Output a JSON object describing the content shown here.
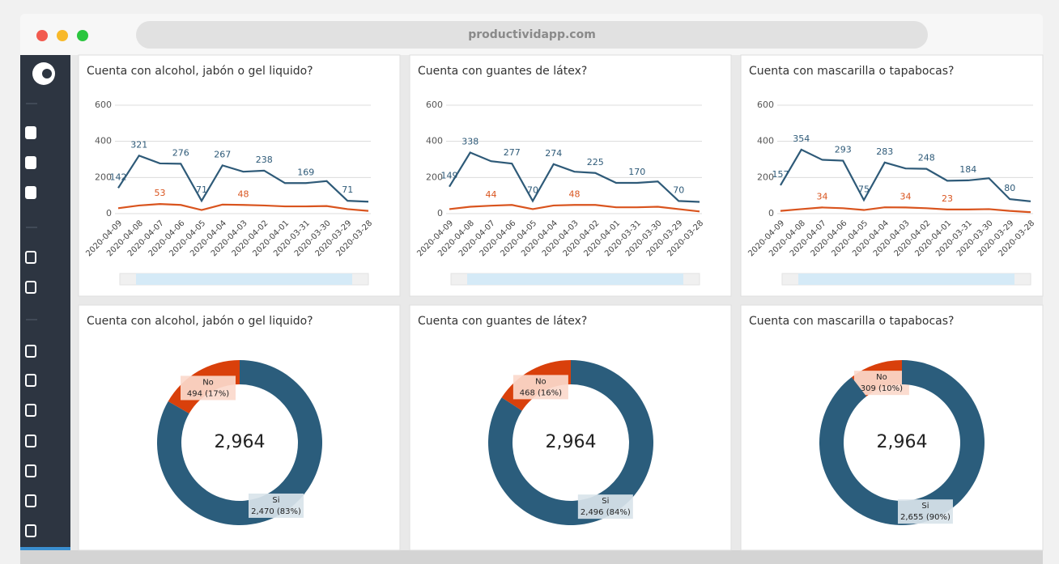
{
  "browser": {
    "url": "productividapp.com"
  },
  "chart_data": [
    {
      "type": "line",
      "title": "Cuenta con alcohol, jabón o gel liquido?",
      "categories": [
        "2020-04-09",
        "2020-04-08",
        "2020-04-07",
        "2020-04-06",
        "2020-04-05",
        "2020-04-04",
        "2020-04-03",
        "2020-04-02",
        "2020-04-01",
        "2020-03-31",
        "2020-03-30",
        "2020-03-29",
        "2020-03-28"
      ],
      "series": [
        {
          "color": "#2e5a78",
          "values": [
            142,
            321,
            278,
            276,
            71,
            267,
            232,
            238,
            169,
            169,
            180,
            71,
            66
          ],
          "value_labels": [
            "142",
            "321",
            null,
            "276",
            "71",
            "267",
            null,
            "238",
            null,
            "169",
            null,
            "71",
            null
          ]
        },
        {
          "color": "#d9541e",
          "values": [
            30,
            45,
            53,
            48,
            20,
            50,
            48,
            45,
            40,
            40,
            42,
            25,
            15
          ],
          "value_labels": [
            null,
            null,
            "53",
            null,
            null,
            null,
            "48",
            null,
            null,
            null,
            null,
            null,
            null
          ]
        }
      ],
      "ylim": [
        0,
        600
      ],
      "yticks": [
        0,
        200,
        400,
        600
      ],
      "grid": true
    },
    {
      "type": "line",
      "title": "Cuenta con guantes de látex?",
      "categories": [
        "2020-04-09",
        "2020-04-08",
        "2020-04-07",
        "2020-04-06",
        "2020-04-05",
        "2020-04-04",
        "2020-04-03",
        "2020-04-02",
        "2020-04-01",
        "2020-03-31",
        "2020-03-30",
        "2020-03-29",
        "2020-03-28"
      ],
      "series": [
        {
          "color": "#2e5a78",
          "values": [
            149,
            338,
            290,
            277,
            70,
            274,
            232,
            225,
            170,
            170,
            178,
            70,
            65
          ],
          "value_labels": [
            "149",
            "338",
            null,
            "277",
            "70",
            "274",
            null,
            "225",
            null,
            "170",
            null,
            "70",
            null
          ]
        },
        {
          "color": "#d9541e",
          "values": [
            25,
            38,
            44,
            48,
            25,
            45,
            48,
            48,
            35,
            35,
            38,
            25,
            12
          ],
          "value_labels": [
            null,
            null,
            "44",
            null,
            null,
            null,
            "48",
            null,
            null,
            null,
            null,
            null,
            null
          ]
        }
      ],
      "ylim": [
        0,
        600
      ],
      "yticks": [
        0,
        200,
        400,
        600
      ],
      "grid": true
    },
    {
      "type": "line",
      "title": "Cuenta con mascarilla o tapabocas?",
      "categories": [
        "2020-04-09",
        "2020-04-08",
        "2020-04-07",
        "2020-04-06",
        "2020-04-05",
        "2020-04-04",
        "2020-04-03",
        "2020-04-02",
        "2020-04-01",
        "2020-03-31",
        "2020-03-30",
        "2020-03-29",
        "2020-03-28"
      ],
      "series": [
        {
          "color": "#2e5a78",
          "values": [
            157,
            354,
            298,
            293,
            75,
            283,
            250,
            248,
            182,
            184,
            196,
            80,
            68
          ],
          "value_labels": [
            "157",
            "354",
            null,
            "293",
            "75",
            "283",
            null,
            "248",
            null,
            "184",
            null,
            "80",
            null
          ]
        },
        {
          "color": "#d9541e",
          "values": [
            15,
            25,
            34,
            30,
            20,
            35,
            34,
            30,
            23,
            23,
            25,
            15,
            8
          ],
          "value_labels": [
            null,
            null,
            "34",
            null,
            null,
            null,
            "34",
            null,
            "23",
            null,
            null,
            null,
            null
          ]
        }
      ],
      "ylim": [
        0,
        600
      ],
      "yticks": [
        0,
        200,
        400,
        600
      ],
      "grid": true
    },
    {
      "type": "donut",
      "title": "Cuenta con alcohol, jabón o gel liquido?",
      "categories": [
        "No",
        "Si"
      ],
      "values": [
        494,
        2470
      ],
      "value_labels": [
        "494 (17%)",
        "2,470 (83%)"
      ],
      "colors": [
        "#d9400b",
        "#2b5d7c"
      ],
      "total": {
        "value": 2964,
        "label": "2,964"
      }
    },
    {
      "type": "donut",
      "title": "Cuenta con guantes de látex?",
      "categories": [
        "No",
        "Si"
      ],
      "values": [
        468,
        2496
      ],
      "value_labels": [
        "468 (16%)",
        "2,496 (84%)"
      ],
      "colors": [
        "#d9400b",
        "#2b5d7c"
      ],
      "total": {
        "value": 2964,
        "label": "2,964"
      }
    },
    {
      "type": "donut",
      "title": "Cuenta con mascarilla o tapabocas?",
      "categories": [
        "No",
        "Si"
      ],
      "values": [
        309,
        2655
      ],
      "value_labels": [
        "309 (10%)",
        "2,655 (90%)"
      ],
      "colors": [
        "#d9400b",
        "#2b5d7c"
      ],
      "total": {
        "value": 2964,
        "label": "2,964"
      }
    }
  ]
}
